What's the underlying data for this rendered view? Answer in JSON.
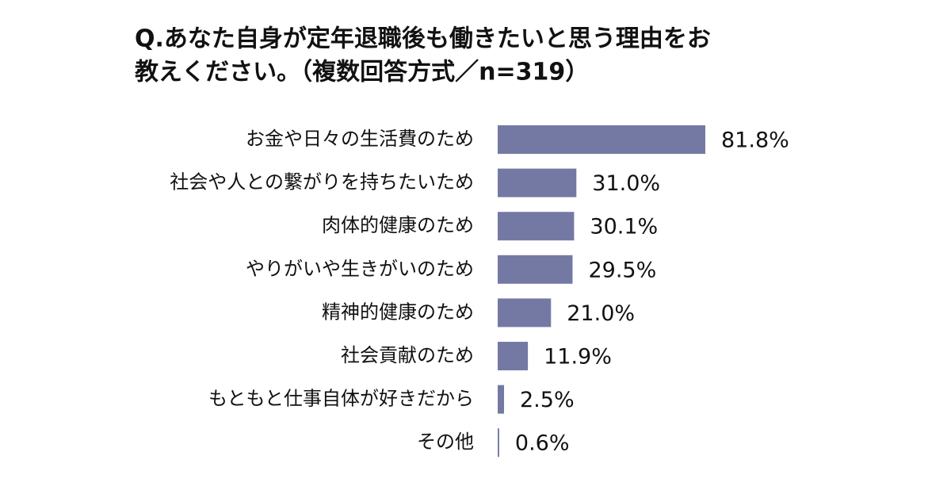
{
  "chart_data": {
    "type": "bar",
    "orientation": "horizontal",
    "title": [
      "Q.あなた自身が定年退職後も働きたいと思う理由をお",
      "教えください。（複数回答方式／n=319）"
    ],
    "categories": [
      "お金や日々の生活費のため",
      "社会や人との繋がりを持ちたいため",
      "肉体的健康のため",
      "やりがいや生きがいのため",
      "精神的健康のため",
      "社会貢献のため",
      "もともと仕事自体が好きだから",
      "その他"
    ],
    "values": [
      81.8,
      31.0,
      30.1,
      29.5,
      21.0,
      11.9,
      2.5,
      0.6
    ],
    "value_labels": [
      "81.8%",
      "31.0%",
      "30.1%",
      "29.5%",
      "21.0%",
      "11.9%",
      "2.5%",
      "0.6%"
    ],
    "color": "#7479a4"
  }
}
